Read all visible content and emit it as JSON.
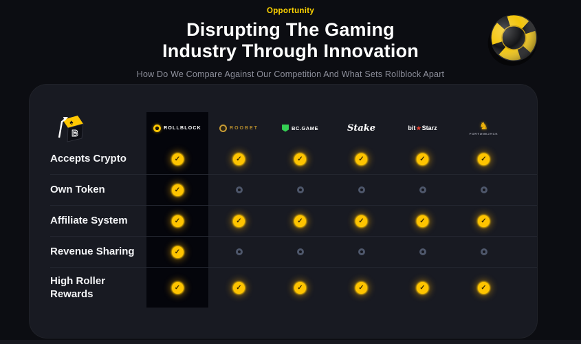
{
  "header": {
    "eyebrow": "Opportunity",
    "title_line1": "Disrupting The Gaming",
    "title_line2": "Industry Through Innovation",
    "subtitle": "How Do We Compare Against Our Competition And What Sets Rollblock Apart"
  },
  "logo": {
    "spade": "♠",
    "letter": "B"
  },
  "icons": {
    "check": "✓",
    "fortunejack_glyph": "♞",
    "bitstarz_star": "★"
  },
  "colors": {
    "accent_yellow": "#ffc400",
    "eyebrow_yellow": "#ffd400",
    "card_bg": "#181a22",
    "highlight_column_bg": "#04050b",
    "cross_ring": "#4e576b",
    "bcgame_green": "#35d054",
    "roobet_gold": "#b38b2d",
    "bitstarz_star_red": "#e8402f"
  },
  "comparison": {
    "columns": [
      {
        "id": "rollblock",
        "label": "ROLLBLOCK",
        "highlight": true
      },
      {
        "id": "roobet",
        "label": "ROOBET"
      },
      {
        "id": "bcgame",
        "label": "BC.GAME"
      },
      {
        "id": "stake",
        "label": "Stake"
      },
      {
        "id": "bitstarz",
        "label": "bitStarz",
        "parts": [
          "bit",
          "Starz"
        ]
      },
      {
        "id": "fortunejack",
        "label": "FORTUNEJACK"
      }
    ],
    "rows": [
      {
        "feature": "Accepts Crypto",
        "values": [
          true,
          true,
          true,
          true,
          true,
          true
        ]
      },
      {
        "feature": "Own Token",
        "values": [
          true,
          false,
          false,
          false,
          false,
          false
        ]
      },
      {
        "feature": "Affiliate System",
        "values": [
          true,
          true,
          true,
          true,
          true,
          true
        ]
      },
      {
        "feature": "Revenue Sharing",
        "values": [
          true,
          false,
          false,
          false,
          false,
          false
        ]
      },
      {
        "feature": "High Roller Rewards",
        "values": [
          true,
          true,
          true,
          true,
          true,
          true
        ]
      }
    ]
  }
}
